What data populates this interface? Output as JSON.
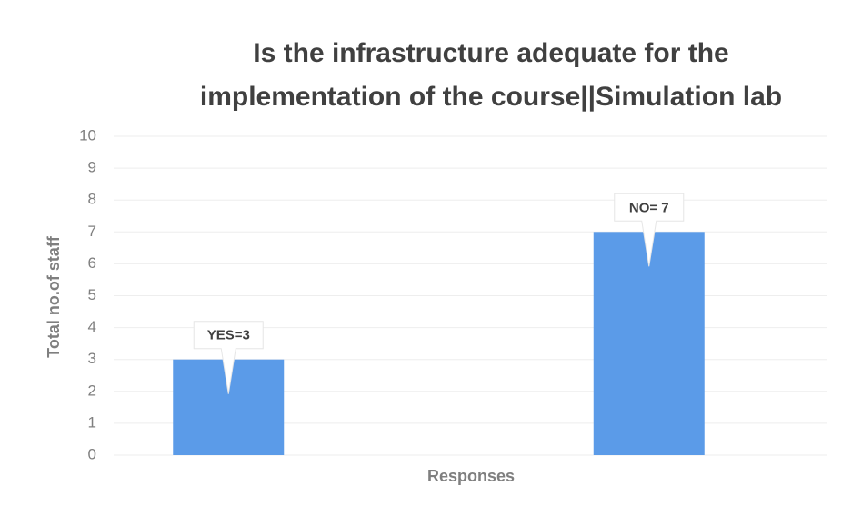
{
  "chart_data": {
    "type": "bar",
    "title": [
      "Is the infrastructure adequate for the",
      "implementation of the course||Simulation lab"
    ],
    "y_label": "Total no.of staff",
    "x_label": "Responses",
    "categories": [
      null,
      null
    ],
    "values": [
      3,
      7
    ],
    "value_labels": [
      "YES=3",
      "NO= 7"
    ],
    "color": "#5b9be8",
    "ylim": [
      0,
      10
    ],
    "yticks": [
      0,
      1,
      2,
      3,
      4,
      5,
      6,
      7,
      8,
      9,
      10
    ],
    "grid": true
  }
}
